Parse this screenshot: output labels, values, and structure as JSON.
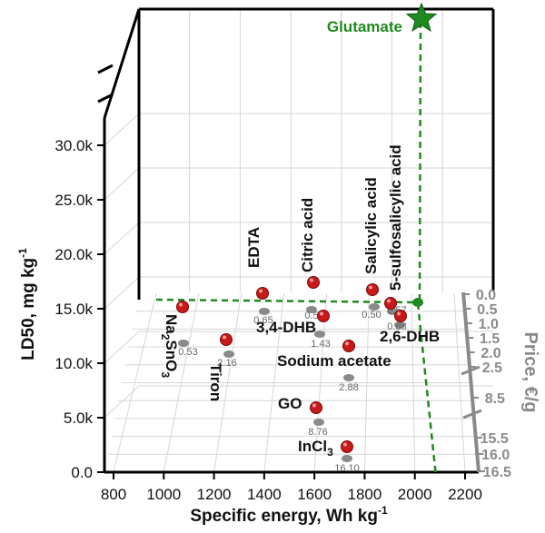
{
  "chart_data": {
    "type": "scatter",
    "projection": "3d",
    "xlabel": "Specific energy, Wh kg",
    "xlabel_sup": "-1",
    "ylabel": "LD50, mg kg",
    "ylabel_sup": "-1",
    "zlabel": "Price, €/g",
    "x_ticks": [
      "800",
      "1000",
      "1200",
      "1400",
      "1600",
      "1800",
      "2000",
      "2200"
    ],
    "y_ticks": [
      "0.0",
      "5.0k",
      "10.0k",
      "15.0k",
      "20.0k",
      "25.0k",
      "30.0k"
    ],
    "z_ticks": [
      "0.0",
      "0.5",
      "1.0",
      "1.5",
      "2.0",
      "2.5",
      "8.5",
      "15.5",
      "16.0",
      "16.5"
    ],
    "y_axis_break": true,
    "z_axis_break": true,
    "grid": true,
    "colors": {
      "point": "#c81818",
      "highlight": "#1f8a1f",
      "projection": "#8a8a8a",
      "axis_z": "#8a8a8a"
    },
    "points": [
      {
        "name": "Na2SnO3",
        "label_parts": [
          "Na",
          "2",
          "SnO",
          "3"
        ],
        "energy": 1070,
        "ld50": 13600,
        "price_label": "0.53"
      },
      {
        "name": "Tiron",
        "label_parts": [
          "Tiron"
        ],
        "energy": 1250,
        "ld50": 11600,
        "price_label": "2.16"
      },
      {
        "name": "EDTA",
        "label_parts": [
          "EDTA"
        ],
        "energy": 1400,
        "ld50": 14000,
        "price_label": "0.65"
      },
      {
        "name": "Citric acid",
        "label_parts": [
          "Citric acid"
        ],
        "energy": 1620,
        "ld50": 14600,
        "price_label": "0.5"
      },
      {
        "name": "3,4-DHB",
        "label_parts": [
          "3,4-DHB"
        ],
        "energy": 1650,
        "ld50": 12000,
        "price_label": "1.43"
      },
      {
        "name": "Sodium acetate",
        "label_parts": [
          "Sodium acetate"
        ],
        "energy": 1740,
        "ld50": 9100,
        "price_label": "2.88"
      },
      {
        "name": "GO",
        "label_parts": [
          "GO"
        ],
        "energy": 1620,
        "ld50": 1500,
        "price_label": "8.76"
      },
      {
        "name": "InCl3",
        "label_parts": [
          "InCl",
          "3"
        ],
        "energy": 1750,
        "ld50": 600,
        "price_label": "16.10"
      },
      {
        "name": "Salicylic acid",
        "label_parts": [
          "Salicylic acid"
        ],
        "energy": 1870,
        "ld50": 13200,
        "price_label": "0.50"
      },
      {
        "name": "5-sulfosalicylic acid",
        "label_parts": [
          "5-sulfosalicylic acid"
        ],
        "energy": 1960,
        "ld50": 11200,
        "price_label": "0.57"
      },
      {
        "name": "2,6-DHB",
        "label_parts": [
          "2,6-DHB"
        ],
        "energy": 1960,
        "ld50": 9800,
        "price_label": "0.88"
      }
    ],
    "highlight": {
      "name": "Glutamate",
      "label": "Glutamate",
      "energy": 2060,
      "ld50": "off-scale",
      "price": 0.0
    }
  }
}
